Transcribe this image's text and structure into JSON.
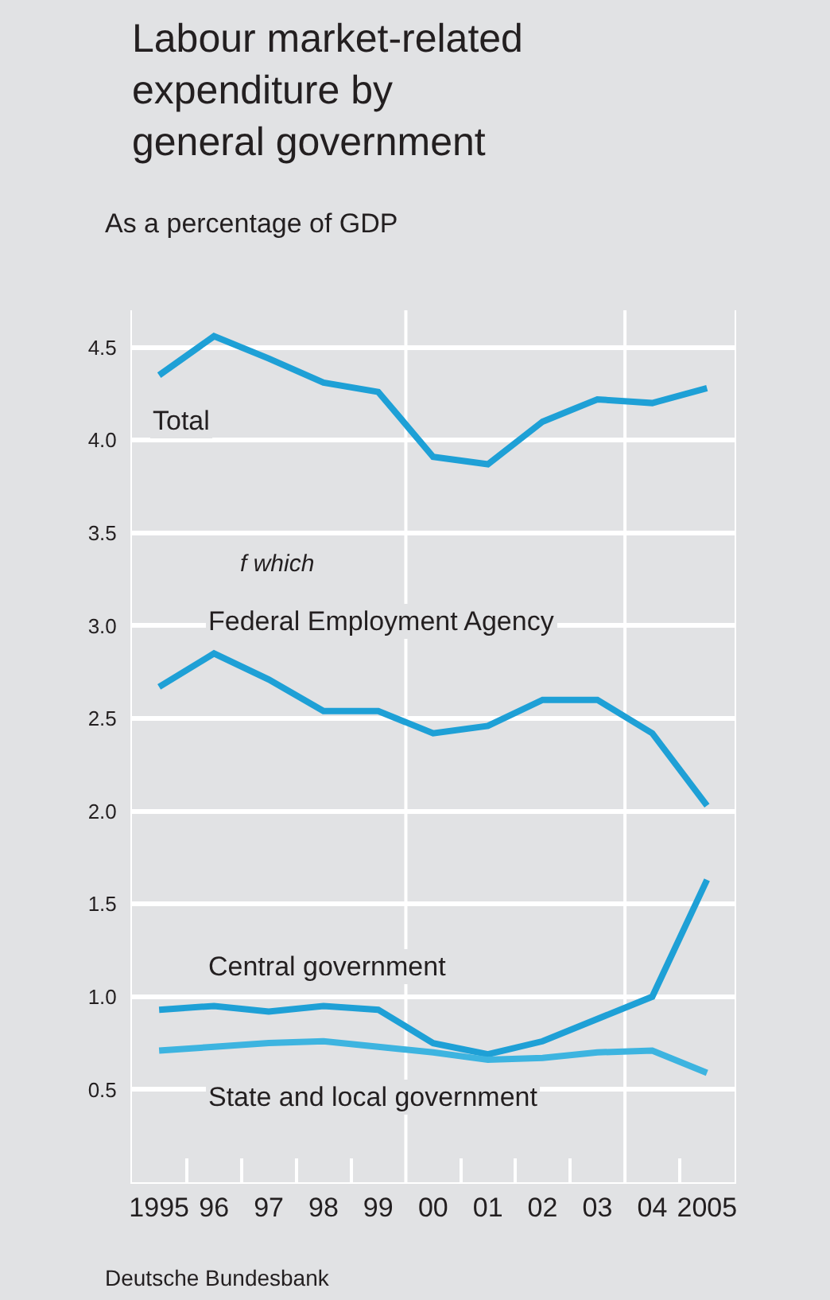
{
  "chart_data": {
    "type": "line",
    "title": "Labour market-related expenditure by general government",
    "subtitle": "As a percentage of GDP",
    "x": [
      "1995-07",
      "1996-07",
      "1997-07",
      "1998-07",
      "1999-07",
      "2000-07",
      "2001-07",
      "2002-07",
      "2003-07",
      "2004-07",
      "2005-07"
    ],
    "series": [
      {
        "name": "Total",
        "color": "#1ea0d6",
        "values": [
          4.35,
          4.56,
          4.44,
          4.31,
          4.26,
          3.91,
          3.87,
          4.1,
          4.22,
          4.2,
          4.28
        ]
      },
      {
        "name": "Federal Employment Agency",
        "color": "#1ea0d6",
        "values": [
          2.67,
          2.85,
          2.71,
          2.54,
          2.54,
          2.42,
          2.46,
          2.6,
          2.6,
          2.42,
          2.03
        ]
      },
      {
        "name": "Central government",
        "color": "#1ea0d6",
        "values": [
          0.93,
          0.95,
          0.92,
          0.95,
          0.93,
          0.75,
          0.69,
          0.76,
          0.88,
          1.0,
          1.63
        ]
      },
      {
        "name": "State and local government",
        "color": "#3db4e0",
        "values": [
          0.71,
          0.73,
          0.75,
          0.76,
          0.73,
          0.7,
          0.66,
          0.67,
          0.7,
          0.71,
          0.59
        ]
      }
    ],
    "xlim": [
      "1995-01",
      "2006-01"
    ],
    "xticks": [
      {
        "value": "1995-07",
        "label": "1995"
      },
      {
        "value": "1996-07",
        "label": "96"
      },
      {
        "value": "1997-07",
        "label": "97"
      },
      {
        "value": "1998-07",
        "label": "98"
      },
      {
        "value": "1999-07",
        "label": "99"
      },
      {
        "value": "2000-07",
        "label": "00"
      },
      {
        "value": "2001-07",
        "label": "01"
      },
      {
        "value": "2002-07",
        "label": "02"
      },
      {
        "value": "2003-07",
        "label": "03"
      },
      {
        "value": "2004-07",
        "label": "04"
      },
      {
        "value": "2005-07",
        "label": "2005"
      },
      {
        "value": "1996-01",
        "label": null
      },
      {
        "value": "1997-01",
        "label": null
      },
      {
        "value": "1998-01",
        "label": null
      },
      {
        "value": "1999-01",
        "label": null
      },
      {
        "value": "2001-01",
        "label": null
      },
      {
        "value": "2002-01",
        "label": null
      },
      {
        "value": "2003-01",
        "label": null
      },
      {
        "value": "2005-01",
        "label": null
      }
    ],
    "ylim": [
      0,
      4.7
    ],
    "yticks": [
      0.5,
      {
        "value": 1,
        "label": "1.0"
      },
      1.5,
      {
        "value": 2,
        "label": "2.0"
      },
      2.5,
      {
        "value": 3,
        "label": "3.0"
      },
      3.5,
      {
        "value": 4,
        "label": "4.0"
      },
      4.5
    ],
    "ref_lines": [
      {
        "axis": "x",
        "value": "2000-01",
        "color": "#ffffff"
      },
      {
        "axis": "x",
        "value": "2004-01",
        "color": "#ffffff"
      }
    ],
    "grid": "y",
    "legend": false,
    "marker": "none",
    "line_style": "solid",
    "annotations": [
      "f which",
      "Deutsche Bundesbank"
    ]
  }
}
